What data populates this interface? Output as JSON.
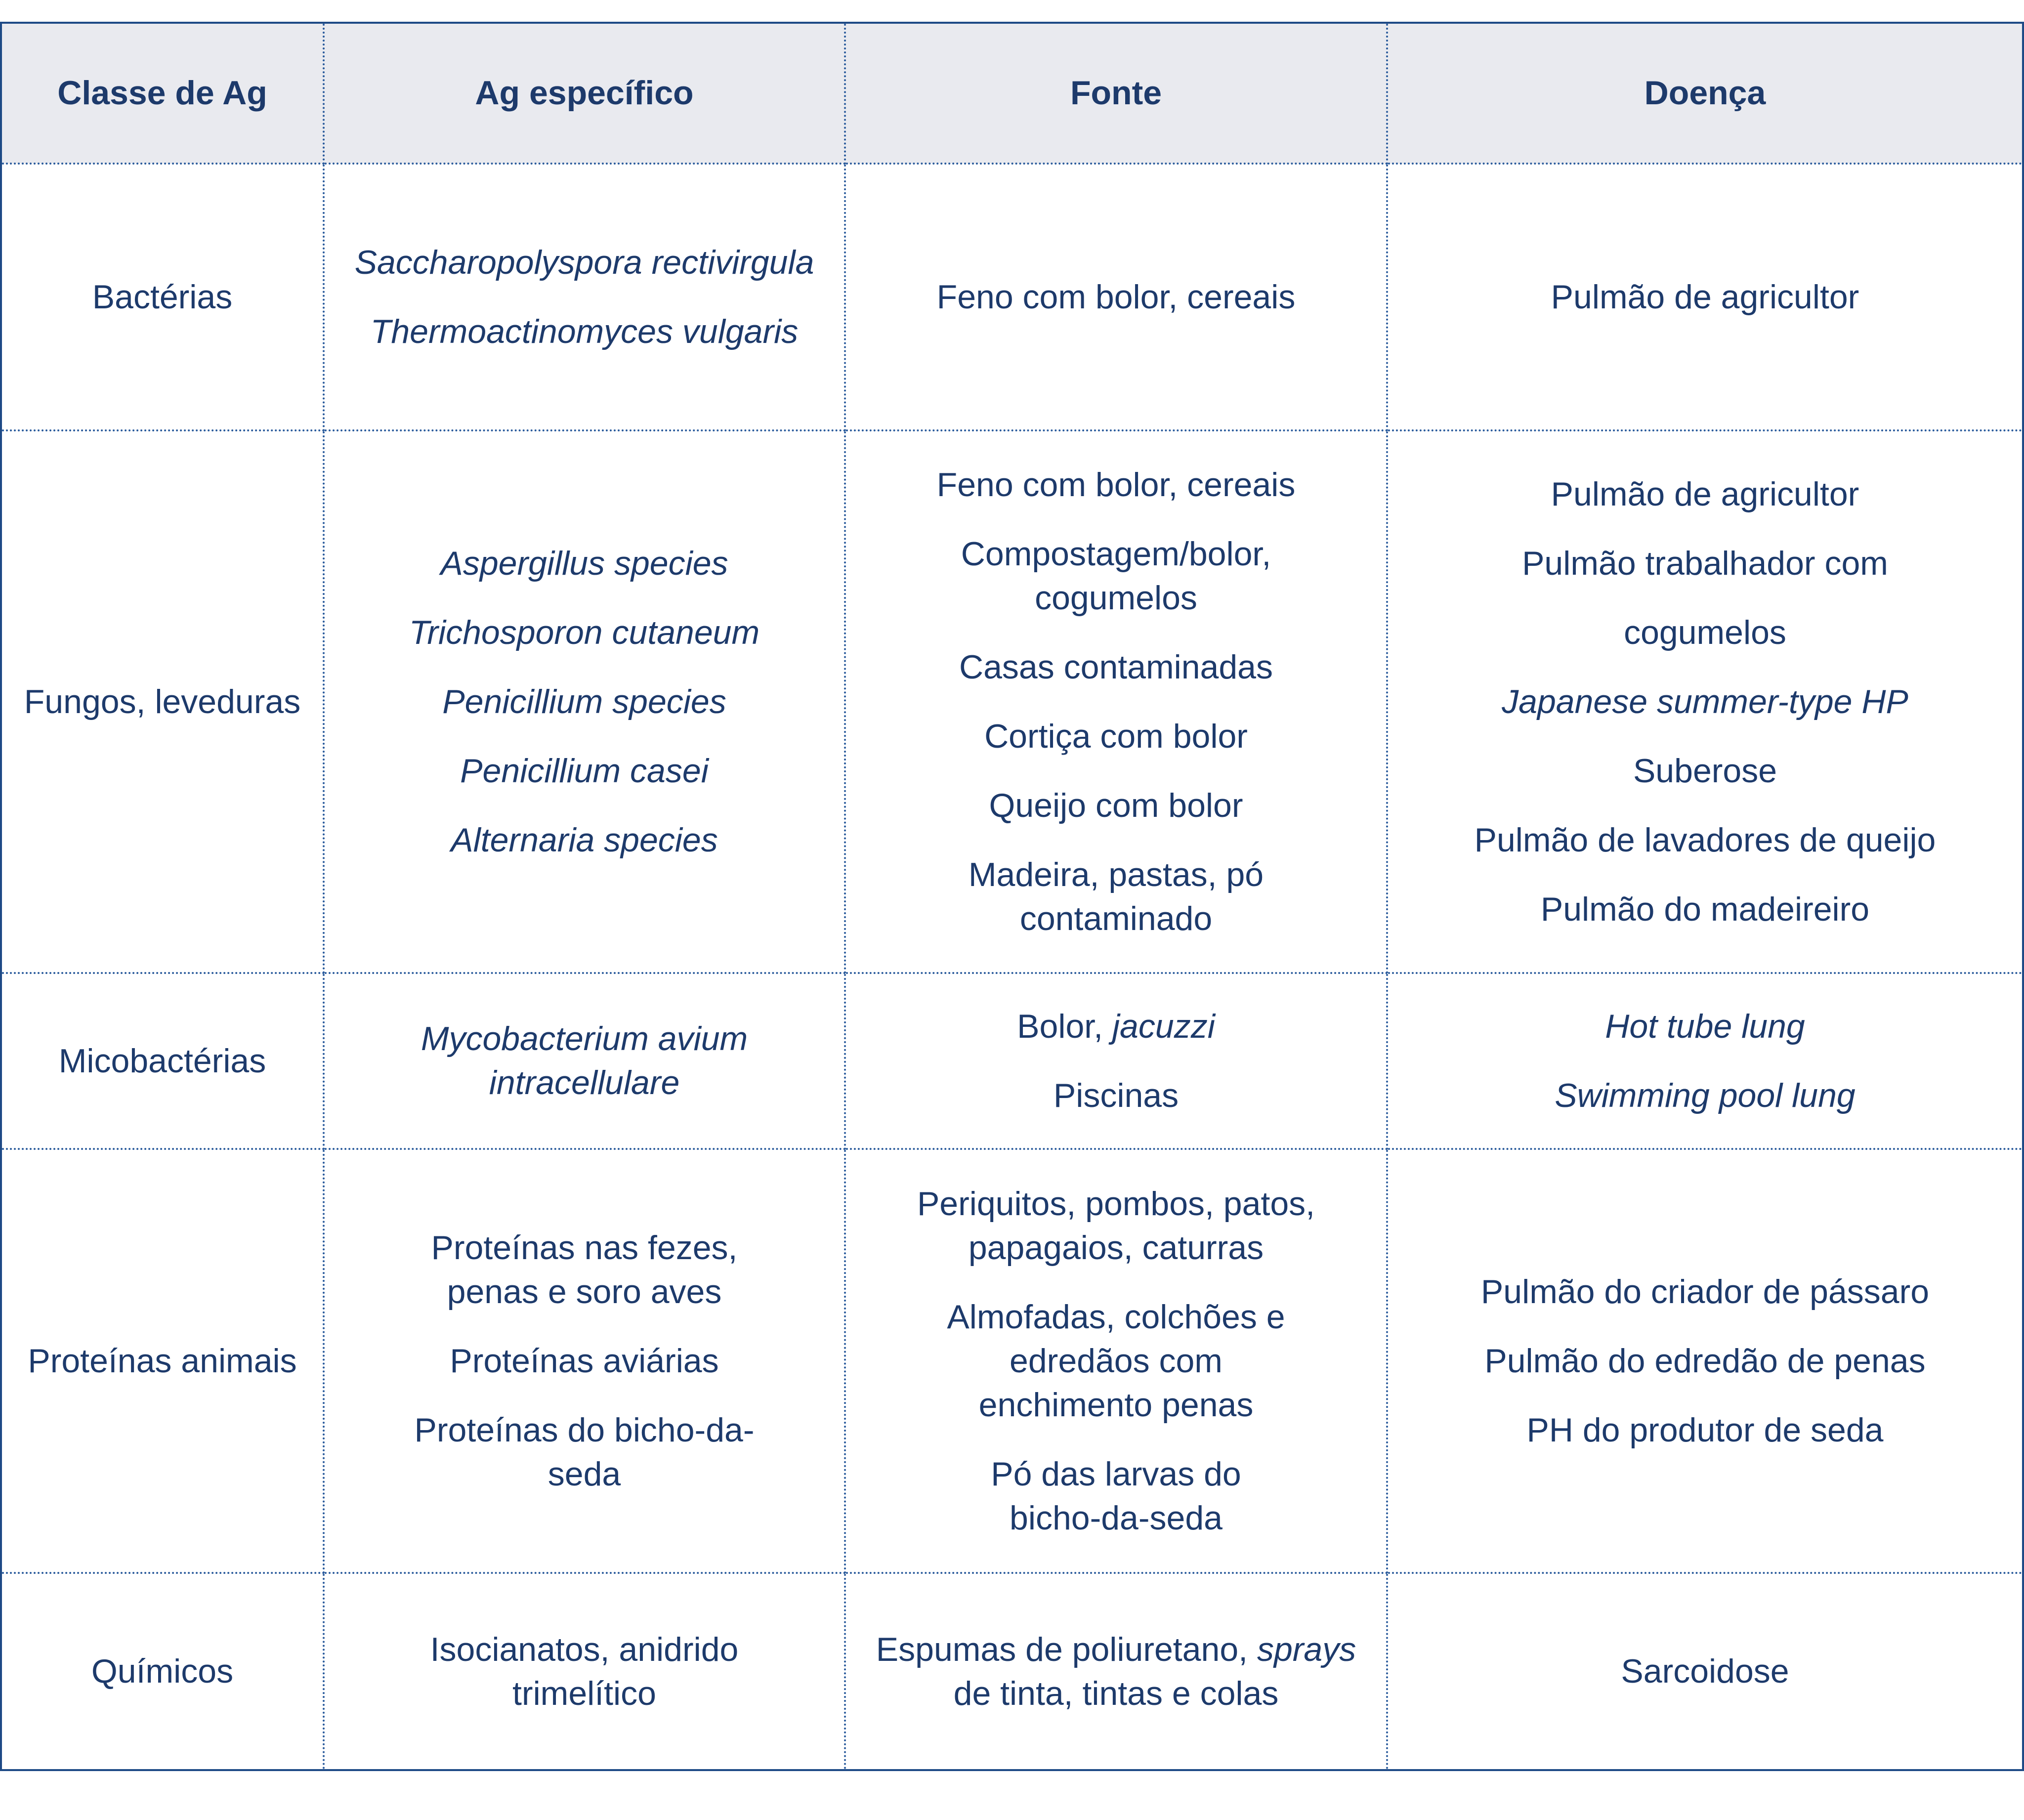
{
  "headers": [
    "Classe de Ag",
    "Ag específico",
    "Fonte",
    "Doença"
  ],
  "rows": [
    {
      "classe": "Bactérias",
      "ag": [
        "Saccharopolyspora rectivirgula",
        "Thermoactinomyces vulgaris"
      ],
      "fonte": [
        "Feno com bolor, cereais"
      ],
      "doenca": [
        "Pulmão de agricultor"
      ]
    },
    {
      "classe": "Fungos, leveduras",
      "ag": [
        "Aspergillus species",
        "Trichosporon cutaneum",
        "Penicillium species",
        "Penicillium casei",
        "Alternaria species"
      ],
      "fonte": [
        "Feno com bolor, cereais",
        "Compostagem/bolor, cogumelos",
        "Casas contaminadas",
        "Cortiça com bolor",
        "Queijo com bolor",
        "Madeira, pastas, pó contaminado"
      ],
      "doenca": [
        "Pulmão de agricultor",
        "Pulmão trabalhador com",
        "cogumelos",
        "Japanese summer-type HP",
        "Suberose",
        "Pulmão de lavadores de queijo",
        "Pulmão do madeireiro"
      ]
    },
    {
      "classe": "Micobactérias",
      "ag": [
        "Mycobacterium avium intracellulare"
      ],
      "fonte": {
        "p1_plain": "Bolor, ",
        "p1_italic": "jacuzzi",
        "p2": "Piscinas"
      },
      "doenca": [
        "Hot tube lung",
        "Swimming pool lung"
      ]
    },
    {
      "classe": "Proteínas animais",
      "ag": [
        "Proteínas nas fezes, penas e soro aves",
        "Proteínas aviárias",
        "Proteínas do bicho-da-seda"
      ],
      "fonte": [
        "Periquitos, pombos, patos, papagaios, caturras",
        "Almofadas, colchões e edredãos com enchimento penas",
        "Pó das larvas do bicho-da-seda"
      ],
      "doenca": [
        "Pulmão do criador de pássaro",
        "Pulmão do edredão de penas",
        "PH do produtor de seda"
      ]
    },
    {
      "classe": "Químicos",
      "ag": [
        "Isocianatos, anidrido trimelítico"
      ],
      "fonte": {
        "p1_a": "Espumas de poliuretano, ",
        "p1_italic": "sprays",
        "p1_b": " de tinta, tintas e colas"
      },
      "doenca": [
        "Sarcoidose"
      ]
    }
  ]
}
